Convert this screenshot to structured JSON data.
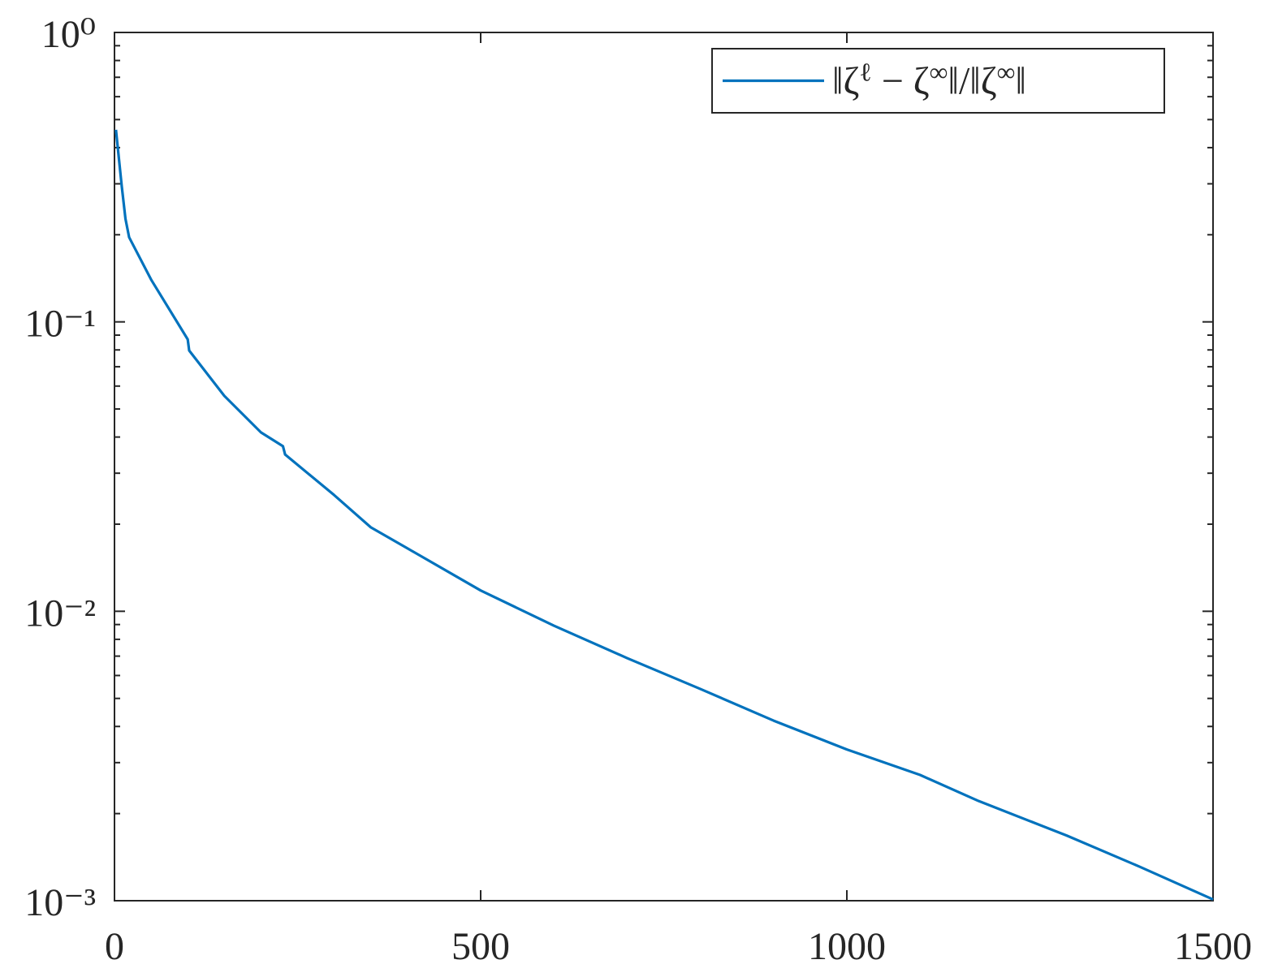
{
  "chart_data": {
    "type": "line",
    "x": [
      2,
      10,
      15,
      20,
      50,
      100,
      102,
      150,
      200,
      230,
      233,
      300,
      350,
      400,
      500,
      600,
      700,
      800,
      900,
      1000,
      1100,
      1180,
      1300,
      1400,
      1500
    ],
    "series": [
      {
        "name": "‖ζ^ℓ − ζ^∞‖/‖ζ^∞‖",
        "color": "#0072BD",
        "values": [
          0.461,
          0.293,
          0.227,
          0.196,
          0.14,
          0.087,
          0.0796,
          0.0555,
          0.0415,
          0.0372,
          0.0348,
          0.0252,
          0.0195,
          0.0165,
          0.0118,
          0.00892,
          0.00689,
          0.00539,
          0.00419,
          0.00333,
          0.00272,
          0.00221,
          0.00168,
          0.00131,
          0.00101
        ]
      }
    ],
    "xlim": [
      0,
      1500
    ],
    "xticks": [
      0,
      500,
      1000,
      1500
    ],
    "ylim": [
      0.001,
      1
    ],
    "yticks": [
      {
        "value": 0.001,
        "label": "10⁻³"
      },
      {
        "value": 0.01,
        "label": "10⁻²"
      },
      {
        "value": 0.1,
        "label": "10⁻¹"
      },
      {
        "value": 1,
        "label": "10⁰"
      }
    ],
    "ylog": true,
    "grid": false,
    "legend": "top-right"
  }
}
